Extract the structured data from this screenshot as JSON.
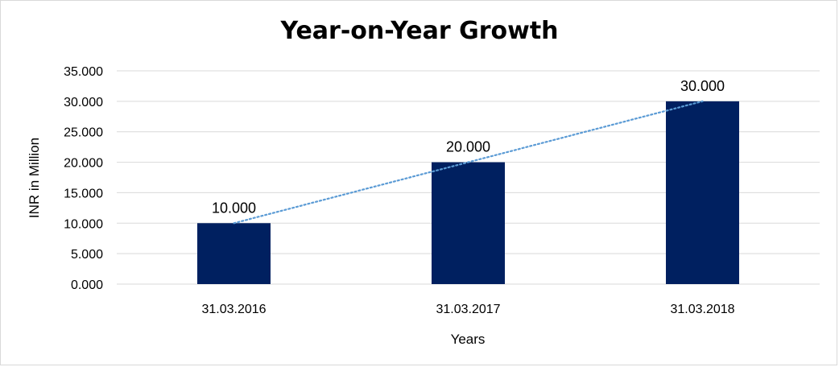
{
  "chart_data": {
    "type": "bar",
    "title": "Year-on-Year Growth",
    "xlabel": "Years",
    "ylabel": "INR in Million",
    "categories": [
      "31.03.2016",
      "31.03.2017",
      "31.03.2018"
    ],
    "values": [
      10000,
      20000,
      30000
    ],
    "data_labels": [
      "10.000",
      "20.000",
      "30.000"
    ],
    "ylim": [
      0,
      35000
    ],
    "yticks": [
      0,
      5000,
      10000,
      15000,
      20000,
      25000,
      30000,
      35000
    ],
    "ytick_labels": [
      "0.000",
      "5.000",
      "10.000",
      "15.000",
      "20.000",
      "25.000",
      "30.000",
      "35.000"
    ],
    "grid": true,
    "legend": "none",
    "trendline": "linear-dotted",
    "colors": {
      "bar": "#002060",
      "trendline": "#5b9bd5",
      "grid": "#d9d9d9"
    }
  }
}
